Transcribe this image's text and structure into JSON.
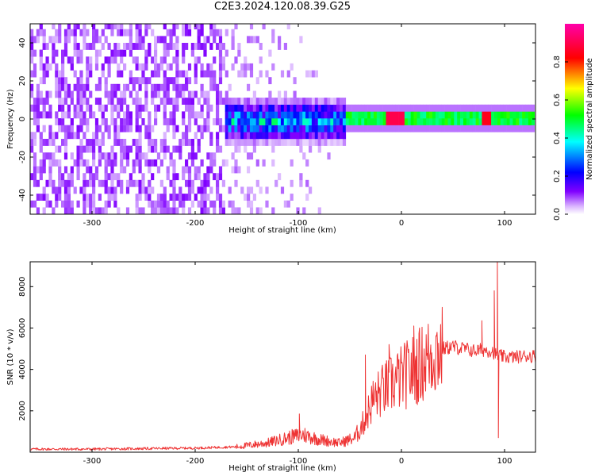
{
  "title": "C2E3.2024.120.08.39.G25",
  "chart_data": [
    {
      "type": "heatmap",
      "xlabel": "Height of straight line (km)",
      "ylabel": "Frequency (Hz)",
      "xlim": [
        -360,
        130
      ],
      "ylim": [
        -50,
        50
      ],
      "xticks": [
        -300,
        -200,
        -100,
        0,
        100
      ],
      "yticks": [
        -40,
        -20,
        0,
        20,
        40
      ],
      "colorbar": {
        "label": "Normalized spectral amplitude",
        "range": [
          0,
          1
        ],
        "ticks": [
          "0.0",
          "0.2",
          "0.4",
          "0.6",
          "0.8"
        ],
        "colors": [
          "#ffffff",
          "#8000ff",
          "#0000ff",
          "#00ffff",
          "#00ff00",
          "#ffff00",
          "#ff0000",
          "#ff00aa"
        ]
      },
      "structure": [
        {
          "region": "scattered noise",
          "height_range": [
            -360,
            -170
          ],
          "frequency_range": [
            -50,
            50
          ],
          "amplitude": 0.08
        },
        {
          "region": "broadband echo",
          "height_range": [
            -170,
            -55
          ],
          "frequency_range": [
            -10,
            8
          ],
          "amplitude": 0.35
        },
        {
          "region": "narrow trail",
          "height_range": [
            -55,
            130
          ],
          "frequency_range": [
            -2,
            2
          ],
          "amplitude": 0.5
        },
        {
          "region": "peak",
          "height": -10,
          "frequency": 1,
          "amplitude": 0.9
        },
        {
          "region": "peak",
          "height": -2,
          "frequency": 1,
          "amplitude": 0.9
        },
        {
          "region": "peak",
          "height": 82,
          "frequency": 1,
          "amplitude": 0.85
        }
      ]
    },
    {
      "type": "line",
      "xlabel": "Height of straight line (km)",
      "ylabel": "SNR (10 * v/v)",
      "xlim": [
        -360,
        130
      ],
      "ylim": [
        0,
        9200
      ],
      "xticks": [
        -300,
        -200,
        -100,
        0,
        100
      ],
      "yticks": [
        2000,
        4000,
        6000,
        8000
      ],
      "color": "#ee3333",
      "profile": {
        "x": [
          -360,
          -300,
          -200,
          -160,
          -130,
          -110,
          -95,
          -80,
          -60,
          -45,
          -35,
          -28,
          -20,
          -10,
          0,
          10,
          20,
          30,
          40,
          50,
          60,
          70,
          80,
          88,
          92,
          96,
          100,
          110,
          120,
          130
        ],
        "y": [
          150,
          150,
          200,
          260,
          450,
          700,
          850,
          620,
          450,
          700,
          1600,
          2500,
          2900,
          3300,
          3600,
          3900,
          4300,
          4700,
          5000,
          5100,
          5000,
          4900,
          4950,
          4900,
          4700,
          4650,
          4600,
          4600,
          4650,
          4650
        ]
      },
      "spikes": [
        {
          "x": -99,
          "y": 1850
        },
        {
          "x": -35,
          "y": 4700
        },
        {
          "x": -12,
          "y": 5200
        },
        {
          "x": 12,
          "y": 6100
        },
        {
          "x": 78,
          "y": 6350
        },
        {
          "x": 90,
          "y": 7800
        },
        {
          "x": 93,
          "y": 9200
        },
        {
          "x": 94,
          "y": 700
        }
      ]
    }
  ]
}
